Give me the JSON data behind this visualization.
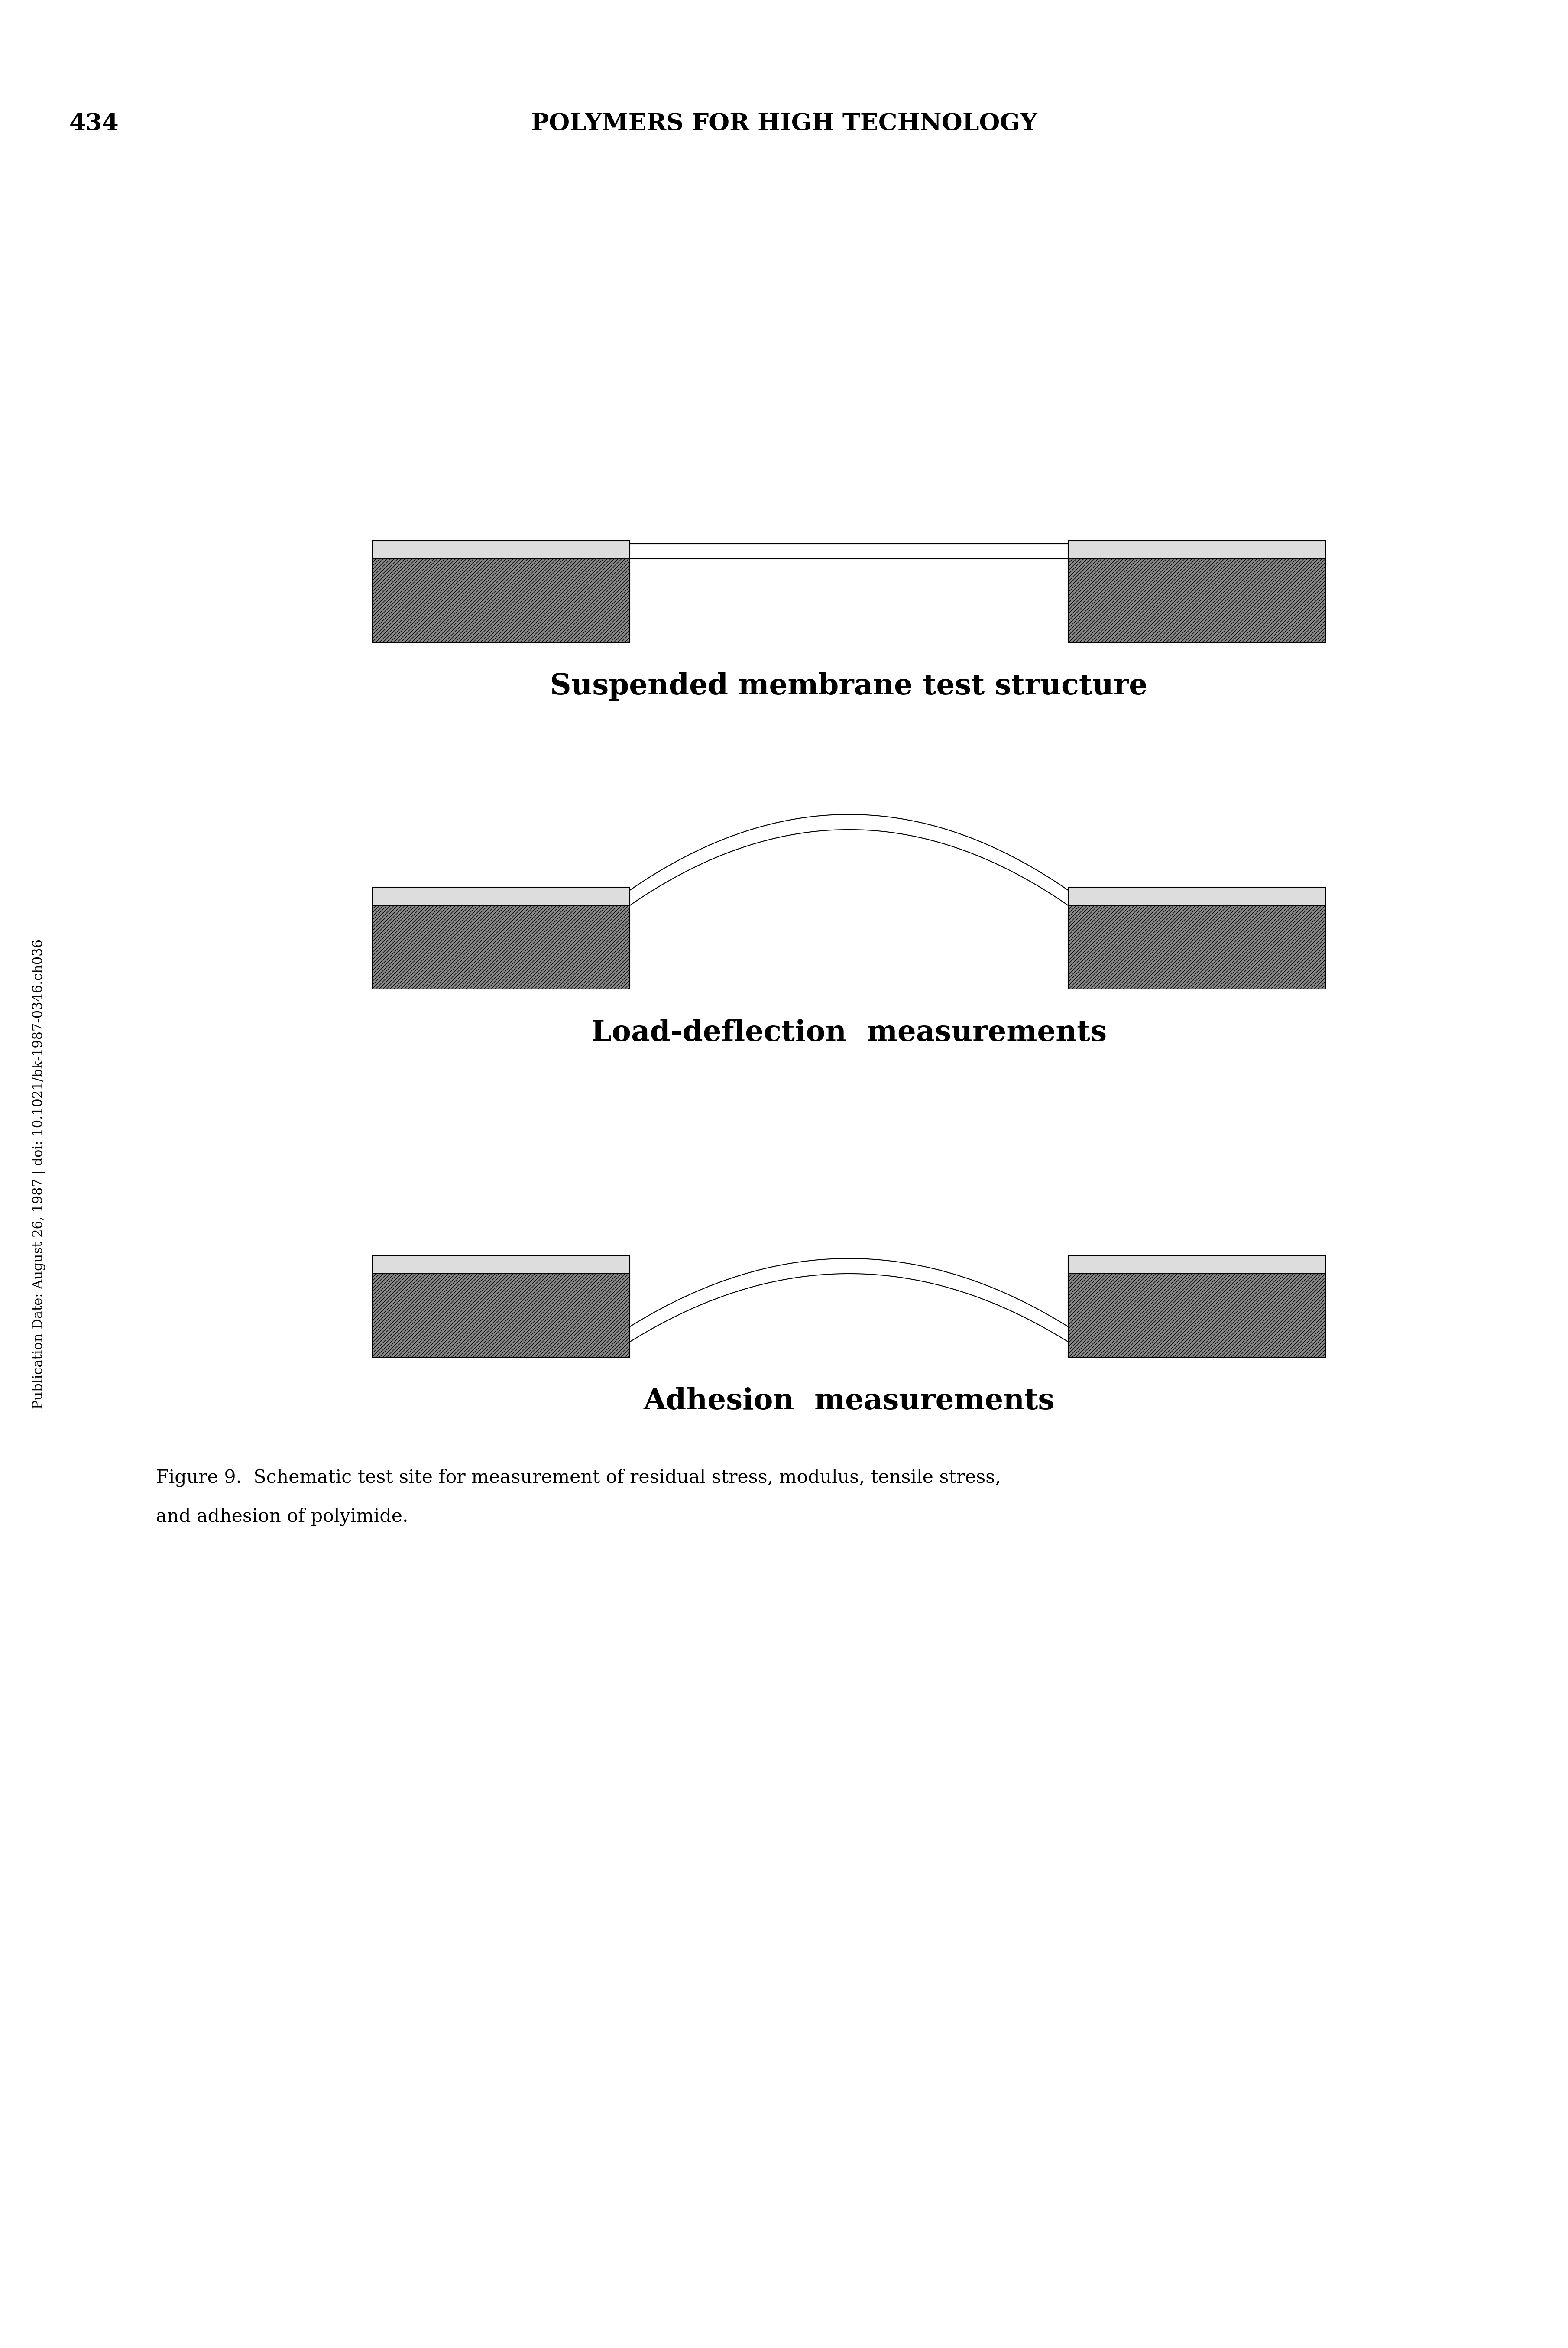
{
  "page_number": "434",
  "header_text": "POLYMERS FOR HIGH TECHNOLOGY",
  "sidebar_text": "Publication Date: August 26, 1987 | doi: 10.1021/bk-1987-0346.ch036",
  "diagram1_label": "Suspended membrane test structure",
  "diagram2_label": "Load-deflection  measurements",
  "diagram3_label": "Adhesion  measurements",
  "caption": "Figure 9.  Schematic test site for measurement of residual stress, modulus, tensile stress,\nand adhesion of polyimide.",
  "bg_color": "#ffffff",
  "hatch_color": "#888888",
  "dark_color": "#333333",
  "black": "#000000",
  "diagram_label_fontsize": 22,
  "caption_fontsize": 14,
  "header_fontsize": 18,
  "page_num_fontsize": 18
}
